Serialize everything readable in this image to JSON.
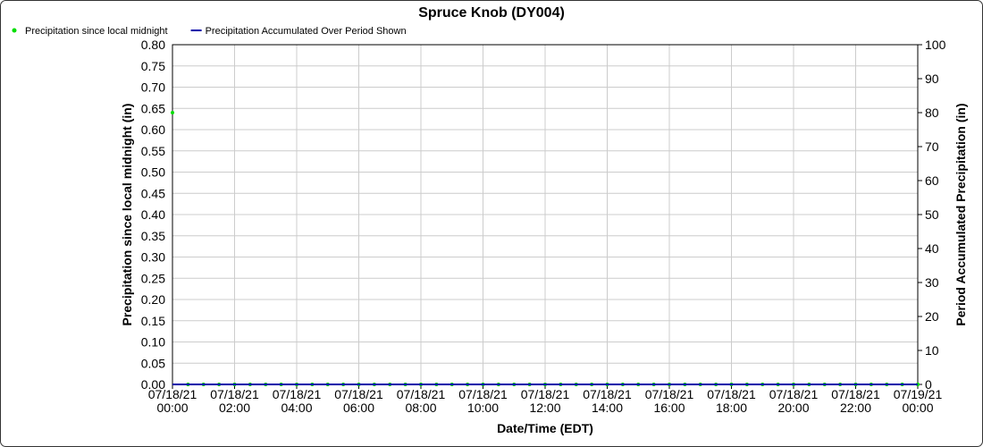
{
  "chart_data": {
    "type": "line",
    "title": "Spruce Knob (DY004)",
    "x_label": "Date/Time (EDT)",
    "y_label": "Precipitation since local midnight (in)",
    "y2_label": "Period Accumulated Precipitation (in)",
    "x": [
      "07/18/21 00:00",
      "07/18/21 00:30",
      "07/18/21 01:00",
      "07/18/21 01:30",
      "07/18/21 02:00",
      "07/18/21 02:30",
      "07/18/21 03:00",
      "07/18/21 03:30",
      "07/18/21 04:00",
      "07/18/21 04:30",
      "07/18/21 05:00",
      "07/18/21 05:30",
      "07/18/21 06:00",
      "07/18/21 06:30",
      "07/18/21 07:00",
      "07/18/21 07:30",
      "07/18/21 08:00",
      "07/18/21 08:30",
      "07/18/21 09:00",
      "07/18/21 09:30",
      "07/18/21 10:00",
      "07/18/21 10:30",
      "07/18/21 11:00",
      "07/18/21 11:30",
      "07/18/21 12:00",
      "07/18/21 12:30",
      "07/18/21 13:00",
      "07/18/21 13:30",
      "07/18/21 14:00",
      "07/18/21 14:30",
      "07/18/21 15:00",
      "07/18/21 15:30",
      "07/18/21 16:00",
      "07/18/21 16:30",
      "07/18/21 17:00",
      "07/18/21 17:30",
      "07/18/21 18:00",
      "07/18/21 18:30",
      "07/18/21 19:00",
      "07/18/21 19:30",
      "07/18/21 20:00",
      "07/18/21 20:30",
      "07/18/21 21:00",
      "07/18/21 21:30",
      "07/18/21 22:00",
      "07/18/21 22:30",
      "07/18/21 23:00",
      "07/18/21 23:30",
      "07/19/21 00:00"
    ],
    "series": [
      {
        "name": "Precipitation since local midnight",
        "color": "#00dd00",
        "marker": "dot",
        "values": [
          0.64,
          0,
          0,
          0,
          0,
          0,
          0,
          0,
          0,
          0,
          0,
          0,
          0,
          0,
          0,
          0,
          0,
          0,
          0,
          0,
          0,
          0,
          0,
          0,
          0,
          0,
          0,
          0,
          0,
          0,
          0,
          0,
          0,
          0,
          0,
          0,
          0,
          0,
          0,
          0,
          0,
          0,
          0,
          0,
          0,
          0,
          0,
          0,
          0
        ]
      },
      {
        "name": "Precipitation Accumulated Over Period Shown",
        "color": "#0000aa",
        "marker": "line",
        "axis": "y2",
        "values": [
          0,
          0,
          0,
          0,
          0,
          0,
          0,
          0,
          0,
          0,
          0,
          0,
          0,
          0,
          0,
          0,
          0,
          0,
          0,
          0,
          0,
          0,
          0,
          0,
          0,
          0,
          0,
          0,
          0,
          0,
          0,
          0,
          0,
          0,
          0,
          0,
          0,
          0,
          0,
          0,
          0,
          0,
          0,
          0,
          0,
          0,
          0,
          0,
          0
        ]
      }
    ],
    "xlim": [
      "07/18/21 00:00",
      "07/19/21 00:00"
    ],
    "xticks": [
      "07/18/21 00:00",
      "07/18/21 02:00",
      "07/18/21 04:00",
      "07/18/21 06:00",
      "07/18/21 08:00",
      "07/18/21 10:00",
      "07/18/21 12:00",
      "07/18/21 14:00",
      "07/18/21 16:00",
      "07/18/21 18:00",
      "07/18/21 20:00",
      "07/18/21 22:00",
      "07/19/21 00:00"
    ],
    "ylim": [
      0,
      0.8
    ],
    "yticks": [
      {
        "value": 0,
        "label": "0.00"
      },
      {
        "value": 0.05,
        "label": "0.05"
      },
      {
        "value": 0.1,
        "label": "0.10"
      },
      {
        "value": 0.15,
        "label": "0.15"
      },
      {
        "value": 0.2,
        "label": "0.20"
      },
      {
        "value": 0.25,
        "label": "0.25"
      },
      {
        "value": 0.3,
        "label": "0.30"
      },
      {
        "value": 0.35,
        "label": "0.35"
      },
      {
        "value": 0.4,
        "label": "0.40"
      },
      {
        "value": 0.45,
        "label": "0.45"
      },
      {
        "value": 0.5,
        "label": "0.50"
      },
      {
        "value": 0.55,
        "label": "0.55"
      },
      {
        "value": 0.6,
        "label": "0.60"
      },
      {
        "value": 0.65,
        "label": "0.65"
      },
      {
        "value": 0.7,
        "label": "0.70"
      },
      {
        "value": 0.75,
        "label": "0.75"
      },
      {
        "value": 0.8,
        "label": "0.80"
      }
    ],
    "y2lim": [
      0,
      100
    ],
    "y2ticks": [
      0,
      10,
      20,
      30,
      40,
      50,
      60,
      70,
      80,
      90,
      100
    ],
    "grid": true,
    "legend": "top-left"
  }
}
